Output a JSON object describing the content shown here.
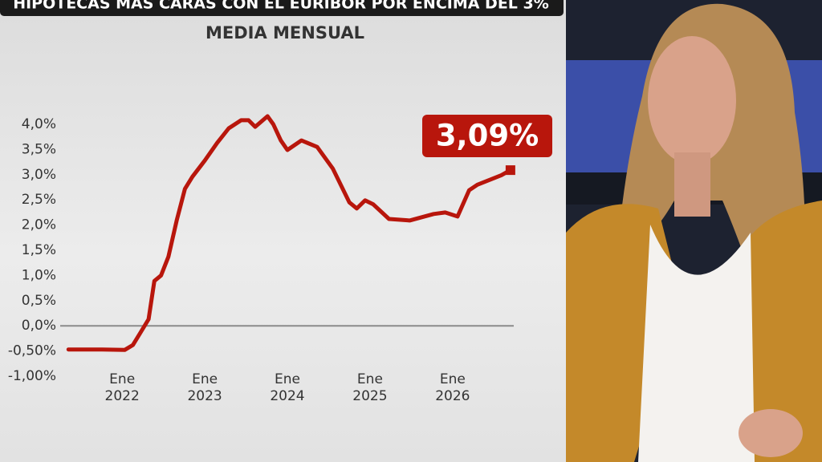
{
  "header": {
    "banner": "HIPOTECAS MÁS CARAS CON EL EURÍBOR POR ENCIMA DEL 3%"
  },
  "chart_data": {
    "type": "line",
    "title": "MEDIA MENSUAL",
    "annotation": "3,09%",
    "color": "#b8160c",
    "grid": false,
    "x": [
      2021.35,
      2021.74,
      2022.03,
      2022.13,
      2022.22,
      2022.32,
      2022.39,
      2022.47,
      2022.56,
      2022.66,
      2022.76,
      2022.85,
      2023.0,
      2023.15,
      2023.29,
      2023.44,
      2023.53,
      2023.61,
      2023.76,
      2023.83,
      2023.92,
      2024.0,
      2024.17,
      2024.36,
      2024.55,
      2024.75,
      2024.84,
      2024.94,
      2025.04,
      2025.23,
      2025.48,
      2025.77,
      2025.91,
      2026.06,
      2026.2,
      2026.3,
      2026.59,
      2026.7
    ],
    "values": [
      -0.47,
      -0.47,
      -0.48,
      -0.38,
      -0.14,
      0.13,
      0.89,
      1.0,
      1.37,
      2.09,
      2.72,
      2.96,
      3.28,
      3.63,
      3.92,
      4.08,
      4.08,
      3.95,
      4.16,
      4.0,
      3.68,
      3.49,
      3.68,
      3.55,
      3.12,
      2.45,
      2.33,
      2.49,
      2.41,
      2.12,
      2.09,
      2.22,
      2.25,
      2.17,
      2.69,
      2.8,
      2.99,
      3.09
    ],
    "xlim": [
      2021.25,
      2026.74
    ],
    "xticks": [
      {
        "value": 2022,
        "label": "Ene 2022"
      },
      {
        "value": 2023,
        "label": "Ene 2023"
      },
      {
        "value": 2024,
        "label": "Ene 2024"
      },
      {
        "value": 2025,
        "label": "Ene 2025"
      },
      {
        "value": 2026,
        "label": "Ene 2026"
      }
    ],
    "ylim": [
      -1.0,
      4.2
    ],
    "yticks": [
      {
        "value": -1.0,
        "label": "-1,00%"
      },
      {
        "value": -0.5,
        "label": "-0,50%"
      },
      {
        "value": 0,
        "label": "0,0%"
      },
      {
        "value": 0.5,
        "label": "0,5%"
      },
      {
        "value": 1.0,
        "label": "1,0%"
      },
      {
        "value": 1.5,
        "label": "1,5%"
      },
      {
        "value": 2.0,
        "label": "2,0%"
      },
      {
        "value": 2.5,
        "label": "2,5%"
      },
      {
        "value": 3.0,
        "label": "3,0%"
      },
      {
        "value": 3.5,
        "label": "3,5%"
      },
      {
        "value": 4.0,
        "label": "4,0%"
      }
    ]
  }
}
